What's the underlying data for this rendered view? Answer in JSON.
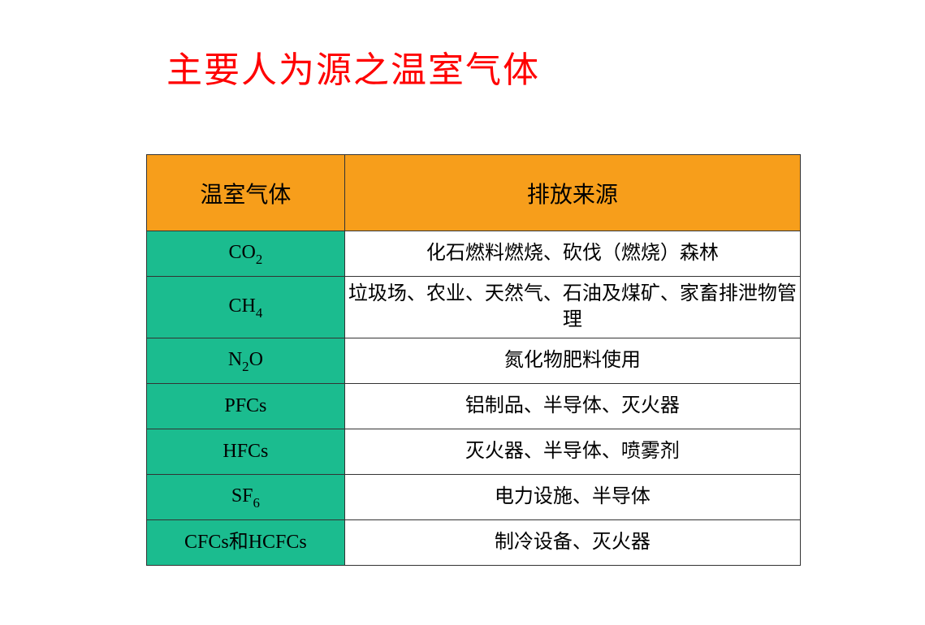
{
  "title": {
    "text": "主要人为源之温室气体",
    "color": "#ff0000",
    "fontsize": 44
  },
  "table": {
    "header": {
      "bg_color": "#f79e1b",
      "text_color": "#000000",
      "columns": [
        "温室气体",
        "排放来源"
      ]
    },
    "gas_column": {
      "bg_color": "#1bbc8f",
      "text_color": "#000000"
    },
    "source_column": {
      "bg_color": "#ffffff",
      "text_color": "#000000"
    },
    "border_color": "#333333",
    "rows": [
      {
        "gas_html": "CO<sub>2</sub>",
        "source": "化石燃料燃烧、砍伐（燃烧）森林"
      },
      {
        "gas_html": "CH<sub>4</sub>",
        "source": "垃圾场、农业、天然气、石油及煤矿、家畜排泄物管理",
        "tall": true
      },
      {
        "gas_html": "N<sub>2</sub>O",
        "source": "氮化物肥料使用"
      },
      {
        "gas_html": "PFCs",
        "source": "铝制品、半导体、灭火器"
      },
      {
        "gas_html": "HFCs",
        "source": "灭火器、半导体、喷雾剂"
      },
      {
        "gas_html": "SF<sub>6</sub>",
        "source": "电力设施、半导体"
      },
      {
        "gas_html": "CFCs<span class=\"cn\">和</span>HCFCs",
        "source": "制冷设备、灭火器"
      }
    ]
  }
}
